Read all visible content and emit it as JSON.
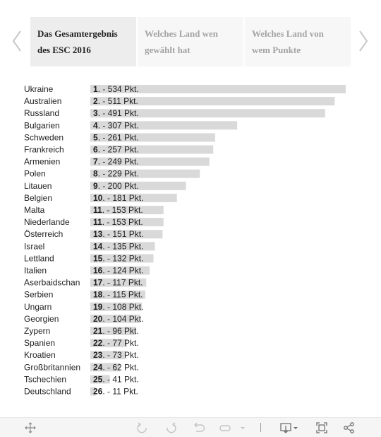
{
  "nav": {
    "tabs": [
      {
        "label_line1": "Das Gesamtergebnis",
        "label_line2": "des ESC 2016"
      },
      {
        "label_line1": "Welches Land wen",
        "label_line2": "gewählt hat"
      },
      {
        "label_line1": "Welches Land von",
        "label_line2": "wem Punkte"
      }
    ],
    "active_tab": 0,
    "prev_icon": "chevron-left-icon",
    "next_icon": "chevron-right-icon"
  },
  "chart_data": {
    "type": "bar",
    "orientation": "horizontal",
    "categories": [
      "Ukraine",
      "Australien",
      "Russland",
      "Bulgarien",
      "Schweden",
      "Frankreich",
      "Armenien",
      "Polen",
      "Litauen",
      "Belgien",
      "Malta",
      "Niederlande",
      "Österreich",
      "Israel",
      "Lettland",
      "Italien",
      "Aserbaidschan",
      "Serbien",
      "Ungarn",
      "Georgien",
      "Zypern",
      "Spanien",
      "Kroatien",
      "Großbritannien",
      "Tschechien",
      "Deutschland"
    ],
    "ranks": [
      "1",
      "2",
      "3",
      "4",
      "5",
      "6",
      "7",
      "8",
      "9",
      "10",
      "11",
      "11",
      "13",
      "14",
      "15",
      "16",
      "17",
      "18",
      "19",
      "20",
      "21",
      "22",
      "23",
      "24",
      "25",
      "26"
    ],
    "label_parts": [
      "Pkt."
    ],
    "values": [
      534,
      511,
      491,
      307,
      261,
      257,
      249,
      229,
      200,
      181,
      153,
      153,
      151,
      135,
      132,
      124,
      117,
      115,
      108,
      104,
      96,
      77,
      73,
      62,
      41,
      11
    ],
    "xlim": [
      0,
      534
    ],
    "bar_color": "#d9d9d9"
  },
  "toolbar": {
    "icons": [
      "move-icon",
      "undo-icon",
      "redo-icon",
      "revert-icon",
      "pause-icon",
      "dropdown-arrow-icon",
      "download-icon",
      "fullscreen-icon",
      "share-icon"
    ]
  }
}
